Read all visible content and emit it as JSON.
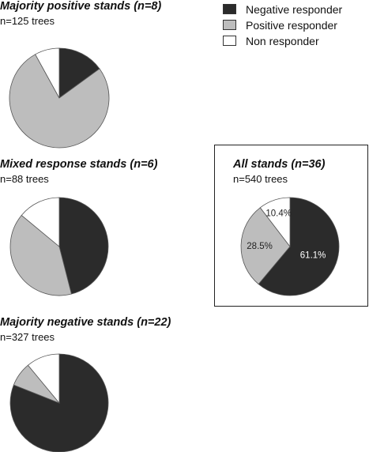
{
  "legend": [
    {
      "label": "Negative responder",
      "color": "#2b2b2b"
    },
    {
      "label": "Positive responder",
      "color": "#bdbdbd"
    },
    {
      "label": "Non responder",
      "color": "#ffffff"
    }
  ],
  "chart_data": [
    {
      "type": "pie",
      "title": "Majority positive stands (n=8)",
      "subtitle": "n=125 trees",
      "categories": [
        "Negative responder",
        "Positive responder",
        "Non responder"
      ],
      "values": [
        15,
        77,
        8
      ],
      "data_labels": []
    },
    {
      "type": "pie",
      "title": "Mixed response stands (n=6)",
      "subtitle": "n=88 trees",
      "categories": [
        "Negative responder",
        "Positive responder",
        "Non responder"
      ],
      "values": [
        46,
        40,
        14
      ],
      "data_labels": []
    },
    {
      "type": "pie",
      "title": "All stands (n=36)",
      "subtitle": "n=540 trees",
      "categories": [
        "Negative responder",
        "Positive responder",
        "Non responder"
      ],
      "values": [
        61.1,
        28.5,
        10.4
      ],
      "data_labels": [
        "61.1%",
        "28.5%",
        "10.4%"
      ]
    },
    {
      "type": "pie",
      "title": "Majority negative stands (n=22)",
      "subtitle": "n=327 trees",
      "categories": [
        "Negative responder",
        "Positive responder",
        "Non responder"
      ],
      "values": [
        81,
        8,
        11
      ],
      "data_labels": []
    }
  ]
}
